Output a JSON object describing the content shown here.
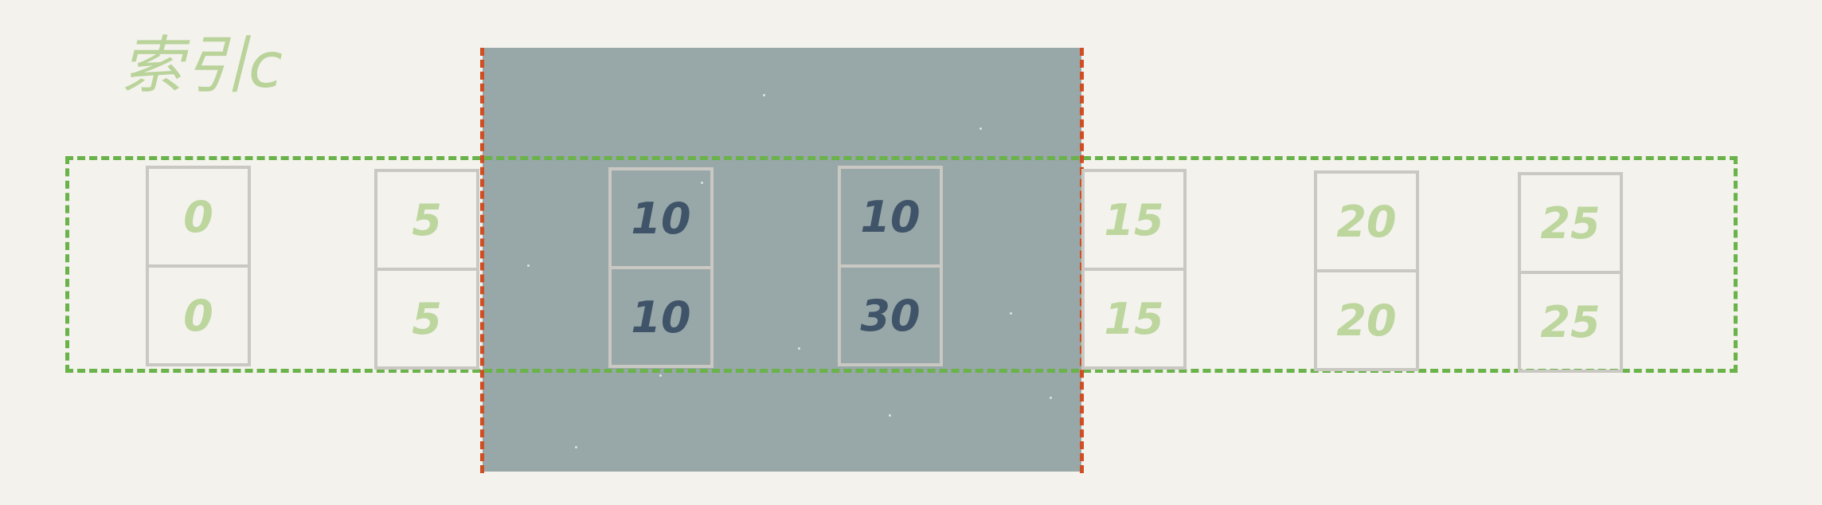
{
  "title": "索引c",
  "colors": {
    "background": "#f3f2ed",
    "lock_region": "#98a7a7",
    "lock_edge": "#cf4e24",
    "index_range_border": "#6ab24a",
    "value_unlocked": "#bcd69d",
    "value_locked": "#3f5468",
    "record_border": "#cac8c3"
  },
  "records": [
    {
      "c": "0",
      "id": "0",
      "locked": false
    },
    {
      "c": "5",
      "id": "5",
      "locked": false
    },
    {
      "c": "10",
      "id": "10",
      "locked": true
    },
    {
      "c": "10",
      "id": "30",
      "locked": true
    },
    {
      "c": "15",
      "id": "15",
      "locked": false
    },
    {
      "c": "20",
      "id": "20",
      "locked": false
    },
    {
      "c": "25",
      "id": "25",
      "locked": false
    }
  ]
}
